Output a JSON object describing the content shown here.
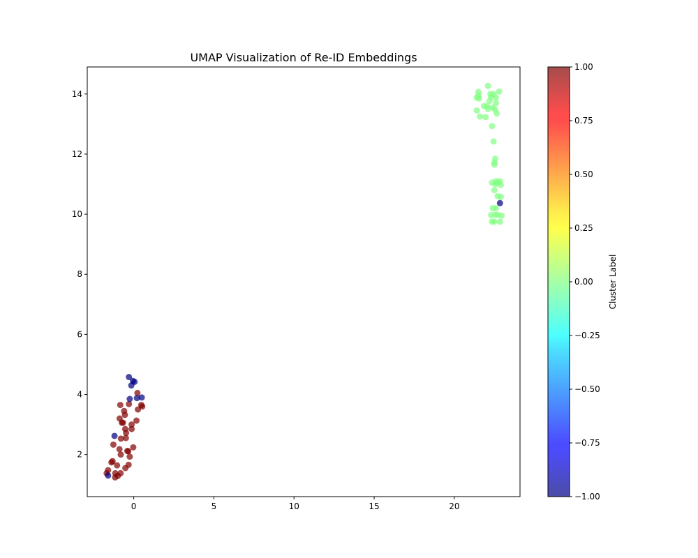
{
  "chart_data": {
    "type": "scatter",
    "title": "UMAP Visualization of Re-ID Embeddings",
    "xlabel": "",
    "ylabel": "",
    "xlim": [
      -2.9,
      24.1
    ],
    "ylim": [
      0.6,
      14.9
    ],
    "xticks": [
      "0",
      "5",
      "10",
      "15",
      "20"
    ],
    "yticks": [
      "2",
      "4",
      "6",
      "8",
      "10",
      "12",
      "14"
    ],
    "colorbar": {
      "label": "Cluster Label",
      "range": [
        -1.0,
        1.0
      ],
      "ticks": [
        "−1.00",
        "−0.75",
        "−0.50",
        "−0.25",
        "0.00",
        "0.25",
        "0.50",
        "0.75",
        "1.00"
      ],
      "colormap": "jet"
    },
    "series": [
      {
        "cluster": 1,
        "color": "#800000",
        "points": [
          [
            0.23,
            4.05
          ],
          [
            0.47,
            3.65
          ],
          [
            0.53,
            3.6
          ],
          [
            0.26,
            3.5
          ],
          [
            -0.3,
            3.68
          ],
          [
            -0.84,
            3.65
          ],
          [
            -0.6,
            3.45
          ],
          [
            -0.55,
            3.32
          ],
          [
            -0.74,
            3.06
          ],
          [
            -0.67,
            3.06
          ],
          [
            -0.88,
            3.2
          ],
          [
            0.17,
            3.13
          ],
          [
            -0.13,
            3.0
          ],
          [
            -0.13,
            2.85
          ],
          [
            -0.53,
            2.85
          ],
          [
            -0.48,
            2.72
          ],
          [
            -0.49,
            2.55
          ],
          [
            -0.8,
            2.53
          ],
          [
            -1.27,
            2.33
          ],
          [
            -0.89,
            2.18
          ],
          [
            -0.03,
            2.24
          ],
          [
            -0.4,
            2.12
          ],
          [
            -0.34,
            2.11
          ],
          [
            -0.81,
            2.0
          ],
          [
            -0.25,
            1.93
          ],
          [
            -1.32,
            1.78
          ],
          [
            -1.39,
            1.74
          ],
          [
            -0.32,
            1.66
          ],
          [
            -1.04,
            1.64
          ],
          [
            -0.52,
            1.55
          ],
          [
            -1.6,
            1.48
          ],
          [
            -1.69,
            1.38
          ],
          [
            -0.82,
            1.38
          ],
          [
            -1.15,
            1.38
          ],
          [
            -0.99,
            1.29
          ],
          [
            -1.16,
            1.24
          ]
        ]
      },
      {
        "cluster": 0,
        "color": "#80ff80",
        "points": [
          [
            22.1,
            14.27
          ],
          [
            21.5,
            14.07
          ],
          [
            21.5,
            13.95
          ],
          [
            22.25,
            14.0
          ],
          [
            22.45,
            14.0
          ],
          [
            22.8,
            14.08
          ],
          [
            21.4,
            13.88
          ],
          [
            21.55,
            13.85
          ],
          [
            22.3,
            13.9
          ],
          [
            22.6,
            13.88
          ],
          [
            22.2,
            13.77
          ],
          [
            22.6,
            13.7
          ],
          [
            21.85,
            13.6
          ],
          [
            22.05,
            13.6
          ],
          [
            22.1,
            13.5
          ],
          [
            22.4,
            13.55
          ],
          [
            22.55,
            13.48
          ],
          [
            21.4,
            13.45
          ],
          [
            22.65,
            13.35
          ],
          [
            21.6,
            13.25
          ],
          [
            21.95,
            13.23
          ],
          [
            22.35,
            12.93
          ],
          [
            22.45,
            12.42
          ],
          [
            22.55,
            11.85
          ],
          [
            22.5,
            11.72
          ],
          [
            22.5,
            11.65
          ],
          [
            22.35,
            11.05
          ],
          [
            22.6,
            11.1
          ],
          [
            22.7,
            11.05
          ],
          [
            22.85,
            11.1
          ],
          [
            22.55,
            11.0
          ],
          [
            22.9,
            10.97
          ],
          [
            22.5,
            10.8
          ],
          [
            22.7,
            10.6
          ],
          [
            22.9,
            10.58
          ],
          [
            22.4,
            10.2
          ],
          [
            22.6,
            10.2
          ],
          [
            22.3,
            9.97
          ],
          [
            22.55,
            9.98
          ],
          [
            22.7,
            9.98
          ],
          [
            22.95,
            9.95
          ],
          [
            22.35,
            9.75
          ],
          [
            22.5,
            9.75
          ],
          [
            22.85,
            9.75
          ]
        ]
      },
      {
        "cluster": -1,
        "color": "#000080",
        "points": [
          [
            -0.3,
            4.58
          ],
          [
            -0.05,
            4.45
          ],
          [
            0.05,
            4.42
          ],
          [
            -0.15,
            4.3
          ],
          [
            0.5,
            3.9
          ],
          [
            0.2,
            3.88
          ],
          [
            -0.25,
            3.85
          ],
          [
            -1.2,
            2.62
          ],
          [
            -1.6,
            1.3
          ],
          [
            22.85,
            10.37
          ]
        ]
      }
    ]
  }
}
